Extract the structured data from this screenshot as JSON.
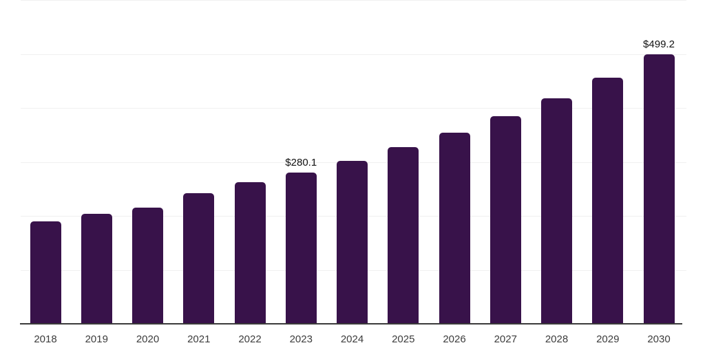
{
  "chart_data": {
    "type": "bar",
    "title": "",
    "xlabel": "",
    "ylabel": "",
    "categories": [
      "2018",
      "2019",
      "2020",
      "2021",
      "2022",
      "2023",
      "2024",
      "2025",
      "2026",
      "2027",
      "2028",
      "2029",
      "2030"
    ],
    "values": [
      189.2,
      203.7,
      214.9,
      241.9,
      261.9,
      280.1,
      301.5,
      326.8,
      354.1,
      384.6,
      418.0,
      456.2,
      499.2
    ],
    "value_labels": {
      "2023": "$280.1",
      "2030": "$499.2"
    },
    "ylim": [
      0,
      600
    ],
    "grid_step": 100,
    "grid": true,
    "legend": false
  },
  "colors": {
    "background": "#ffffff",
    "bar": "#38124a",
    "grid": "#f0f0f0",
    "axis": "#3a3a3a",
    "tick_label": "#3c3c3c",
    "value_label": "#111111"
  }
}
